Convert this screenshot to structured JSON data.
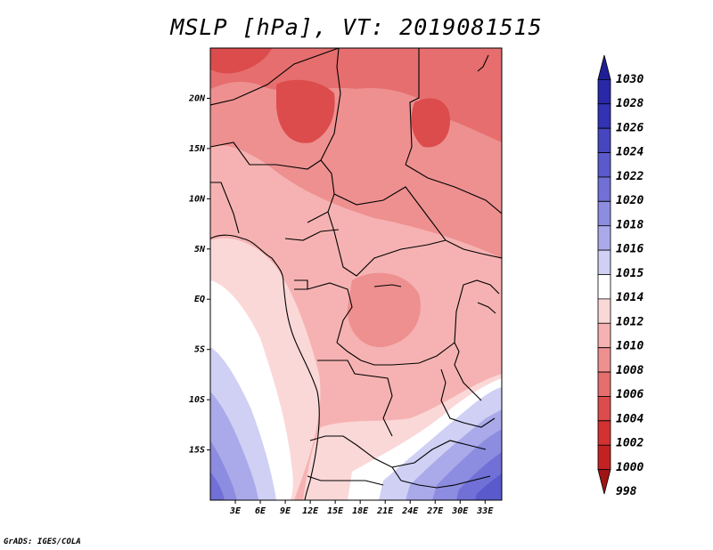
{
  "title": "MSLP [hPa], VT: 2019081515",
  "credit": "GrADS: IGES/COLA",
  "map": {
    "lat_ticks": [
      "20N",
      "15N",
      "10N",
      "5N",
      "EQ",
      "5S",
      "10S",
      "15S"
    ],
    "lat_values": [
      20,
      15,
      10,
      5,
      0,
      -5,
      -10,
      -15
    ],
    "lon_ticks": [
      "3E",
      "6E",
      "9E",
      "12E",
      "15E",
      "18E",
      "21E",
      "24E",
      "27E",
      "30E",
      "33E"
    ],
    "lon_values": [
      3,
      6,
      9,
      12,
      15,
      18,
      21,
      24,
      27,
      30,
      33
    ],
    "lon_range": [
      0,
      35
    ],
    "lat_range": [
      -20,
      25
    ]
  },
  "legend": {
    "levels": [
      "1030",
      "1028",
      "1026",
      "1024",
      "1022",
      "1020",
      "1018",
      "1016",
      "1015",
      "1014",
      "1012",
      "1010",
      "1008",
      "1006",
      "1004",
      "1002",
      "1000",
      "998"
    ],
    "colors": [
      "#1e1e96",
      "#2828a8",
      "#3232b4",
      "#4646c0",
      "#5a5acc",
      "#7070d6",
      "#8c8ce0",
      "#aaaaea",
      "#cfd0f4",
      "#ffffff",
      "#fbd8d8",
      "#f6b2b2",
      "#ee9090",
      "#e66e6e",
      "#dc4c4c",
      "#d23232",
      "#c42222",
      "#a01414"
    ]
  }
}
